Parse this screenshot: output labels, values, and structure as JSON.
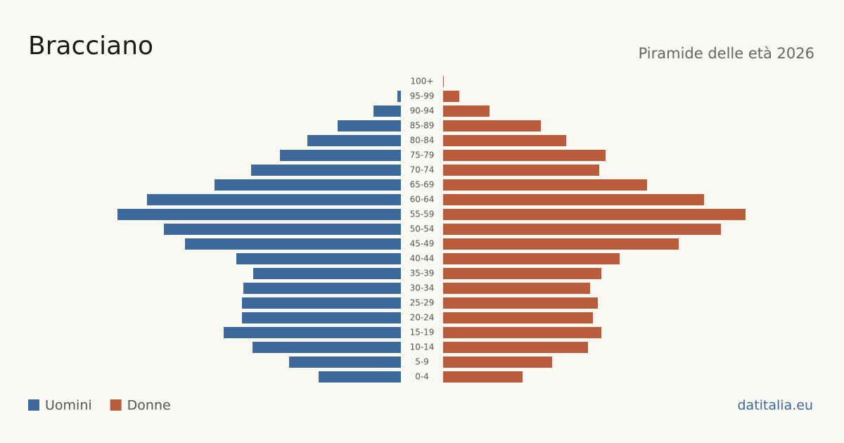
{
  "chart_data": {
    "type": "pyramid",
    "title": "Bracciano",
    "subtitle": "Piramide delle età 2026",
    "source": "datitalia.eu",
    "categories": [
      "100+",
      "95-99",
      "90-94",
      "85-89",
      "80-84",
      "75-79",
      "70-74",
      "65-69",
      "60-64",
      "55-59",
      "50-54",
      "45-49",
      "40-44",
      "35-39",
      "30-34",
      "25-29",
      "20-24",
      "15-19",
      "10-14",
      "5-9",
      "0-4"
    ],
    "series": [
      {
        "name": "Uomini",
        "color": "#3d6a9a",
        "values": [
          0,
          5,
          39,
          90,
          133,
          172,
          213,
          265,
          361,
          403,
          337,
          307,
          234,
          210,
          224,
          226,
          226,
          252,
          211,
          159,
          117
        ]
      },
      {
        "name": "Donne",
        "color": "#b95c3c",
        "values": [
          1,
          23,
          66,
          139,
          175,
          231,
          222,
          290,
          371,
          430,
          395,
          335,
          251,
          225,
          209,
          220,
          213,
          225,
          206,
          155,
          113
        ]
      }
    ]
  }
}
